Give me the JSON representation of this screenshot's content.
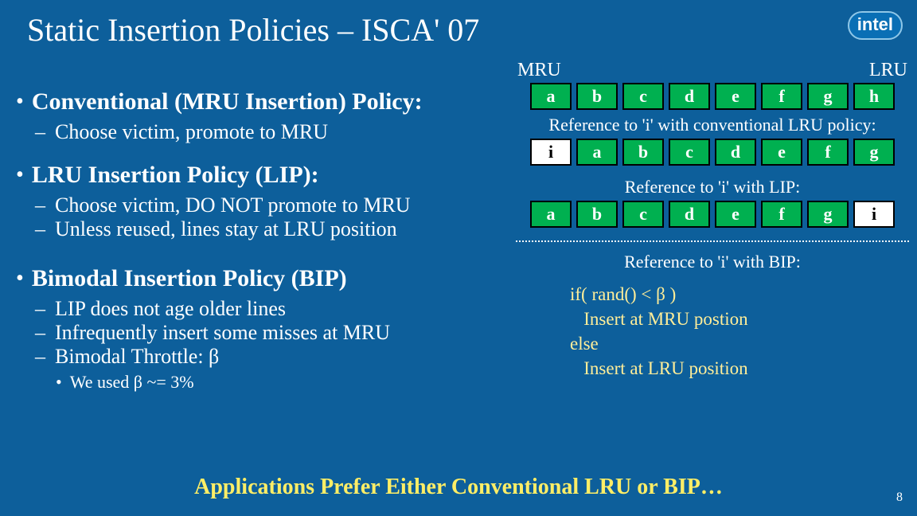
{
  "title": "Static Insertion Policies – ISCA' 07",
  "logo": "intel",
  "bullets": {
    "b1": "Conventional (MRU Insertion) Policy:",
    "b1d1": "Choose victim, promote to MRU",
    "b2": "LRU Insertion Policy (LIP):",
    "b2d1": "Choose victim, DO NOT promote to MRU",
    "b2d2": "Unless reused, lines stay at LRU position",
    "b3": "Bimodal Insertion Policy (BIP)",
    "b3d1": "LIP does not age older lines",
    "b3d2": "Infrequently insert some misses at MRU",
    "b3d3": "Bimodal Throttle: β",
    "b3s1": "We used β ~= 3%"
  },
  "labels": {
    "mru": "MRU",
    "lru": "LRU"
  },
  "row1": [
    "a",
    "b",
    "c",
    "d",
    "e",
    "f",
    "g",
    "h"
  ],
  "caption1": "Reference to 'i' with conventional LRU policy:",
  "row2": [
    "i",
    "a",
    "b",
    "c",
    "d",
    "e",
    "f",
    "g"
  ],
  "caption2": "Reference to 'i' with LIP:",
  "row3": [
    "a",
    "b",
    "c",
    "d",
    "e",
    "f",
    "g",
    "i"
  ],
  "caption3": "Reference to 'i' with BIP:",
  "code": "if( rand() < β )\n   Insert at MRU postion\nelse\n   Insert at LRU position",
  "conclusion": "Applications Prefer Either Conventional LRU or BIP…",
  "slide_num": "8",
  "colors": {
    "green": "#00b050",
    "white": "#ffffff",
    "text": "#ffffff",
    "bg": "#0d5f9b",
    "yellow": "#ffee66"
  }
}
